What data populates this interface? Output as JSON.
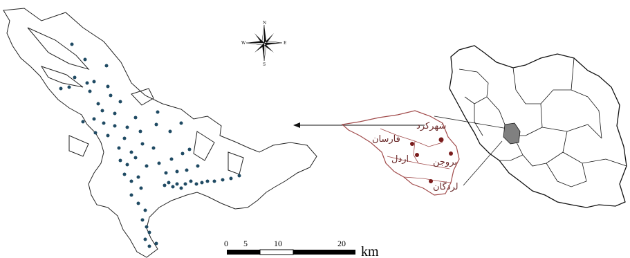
{
  "colors": {
    "study_area_outline": "#222222",
    "sample_points": "#1f4a63",
    "province_outline": "#a04a4a",
    "city_dots": "#7a1c1c",
    "iran_outline": "#111111",
    "highlighted_province": "#808080"
  },
  "compass": {
    "icon": "compass-rose-icon",
    "north": "N",
    "south": "S",
    "east": "E",
    "west": "W"
  },
  "province_map": {
    "cities": [
      {
        "name": "شهرکرد"
      },
      {
        "name": "فارسان"
      },
      {
        "name": "اردل"
      },
      {
        "name": "بروجن"
      },
      {
        "name": "لردگان"
      }
    ]
  },
  "scale_bar": {
    "ticks": [
      "0",
      "5",
      "10",
      "20"
    ],
    "unit": "km"
  }
}
